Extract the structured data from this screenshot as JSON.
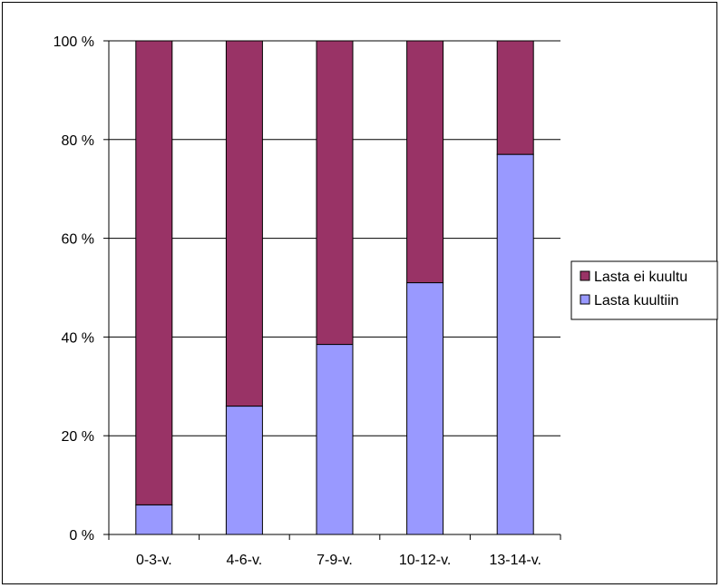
{
  "chart_data": {
    "type": "bar",
    "stacked": true,
    "percent_scale": true,
    "categories": [
      "0-3-v.",
      "4-6-v.",
      "7-9-v.",
      "10-12-v.",
      "13-14-v."
    ],
    "series": [
      {
        "name": "Lasta kuultiin",
        "values": [
          6,
          26,
          38.5,
          51,
          77
        ],
        "color": "#9999ff"
      },
      {
        "name": "Lasta ei kuultu",
        "values": [
          94,
          74,
          61.5,
          49,
          23
        ],
        "color": "#993366"
      }
    ],
    "y_ticks": [
      "0 %",
      "20 %",
      "40 %",
      "60 %",
      "80 %",
      "100 %"
    ],
    "ylim": [
      0,
      100
    ],
    "grid": true,
    "legend_position": "right",
    "legend": [
      {
        "label": "Lasta ei kuultu",
        "color": "#993366"
      },
      {
        "label": "Lasta kuultiin",
        "color": "#9999ff"
      }
    ]
  }
}
